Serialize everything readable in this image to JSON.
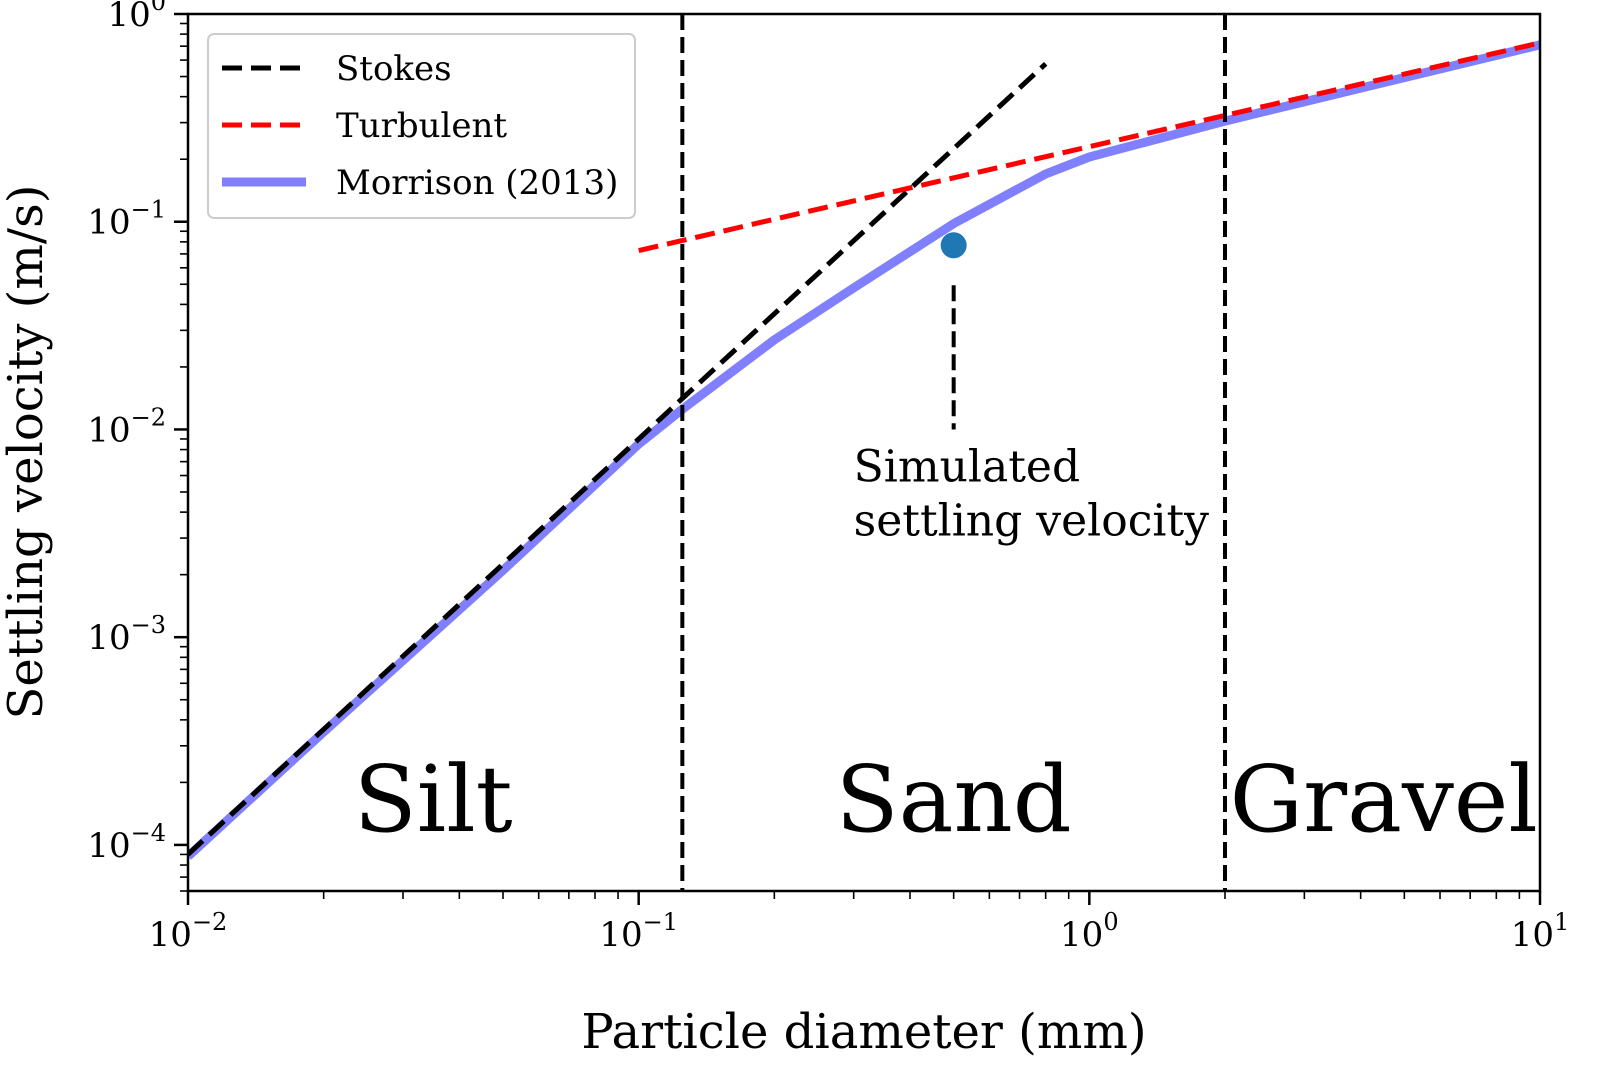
{
  "chart_data": {
    "type": "line",
    "xlabel": "Particle diameter (mm)",
    "ylabel": "Settling velocity (m/s)",
    "x_scale": "log",
    "y_scale": "log",
    "xlim": [
      0.01,
      10
    ],
    "ylim": [
      6e-05,
      1
    ],
    "x_ticks": [
      {
        "value": 0.01,
        "base": "10",
        "exp": "−2"
      },
      {
        "value": 0.1,
        "base": "10",
        "exp": "−1"
      },
      {
        "value": 1,
        "base": "10",
        "exp": "0"
      },
      {
        "value": 10,
        "base": "10",
        "exp": "1"
      }
    ],
    "y_ticks": [
      {
        "value": 0.0001,
        "base": "10",
        "exp": "−4"
      },
      {
        "value": 0.001,
        "base": "10",
        "exp": "−3"
      },
      {
        "value": 0.01,
        "base": "10",
        "exp": "−2"
      },
      {
        "value": 0.1,
        "base": "10",
        "exp": "−1"
      },
      {
        "value": 1,
        "base": "10",
        "exp": "0"
      }
    ],
    "grid": false,
    "legend_position": "top-left",
    "series": [
      {
        "name": "Stokes",
        "color": "#000000",
        "style": "dashed",
        "x": [
          0.01,
          0.03,
          0.1,
          0.125,
          0.3,
          0.5,
          0.8
        ],
        "y": [
          9e-05,
          0.00081,
          0.009,
          0.0141,
          0.081,
          0.225,
          0.576
        ]
      },
      {
        "name": "Turbulent",
        "color": "#ff0000",
        "style": "dashed",
        "x": [
          0.1,
          0.3,
          1,
          2,
          4,
          10
        ],
        "y": [
          0.0726,
          0.126,
          0.23,
          0.325,
          0.46,
          0.726
        ]
      },
      {
        "name": "Morrison (2013)",
        "color": "#8080ff",
        "style": "solid",
        "x": [
          0.01,
          0.02,
          0.05,
          0.1,
          0.125,
          0.2,
          0.3,
          0.5,
          0.8,
          1,
          2,
          4,
          10
        ],
        "y": [
          8.8e-05,
          0.00035,
          0.0021,
          0.0085,
          0.0125,
          0.027,
          0.048,
          0.098,
          0.17,
          0.205,
          0.305,
          0.44,
          0.71
        ]
      }
    ],
    "point": {
      "x": 0.5,
      "y": 0.077,
      "color": "#1f77b4"
    },
    "boundaries": [
      0.125,
      2
    ],
    "regions": [
      {
        "label": "Silt",
        "x": 0.035
      },
      {
        "label": "Sand",
        "x": 0.5
      },
      {
        "label": "Gravel",
        "x": 4.5
      }
    ],
    "annotation": {
      "lines": [
        "Simulated",
        "settling velocity"
      ],
      "x": 0.5,
      "y": 0.01
    }
  }
}
